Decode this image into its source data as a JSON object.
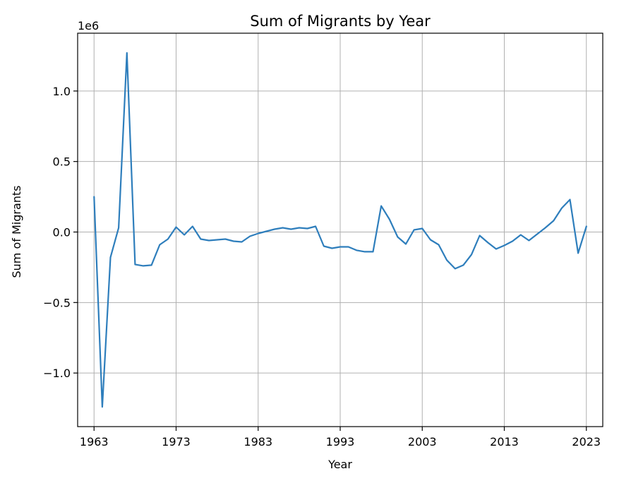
{
  "chart_data": {
    "type": "line",
    "title": "Sum of Migrants by Year",
    "xlabel": "Year",
    "ylabel": "Sum of Migrants",
    "y_scale_label": "1e6",
    "xlim": [
      1961,
      2025
    ],
    "ylim": [
      -1.38,
      1.41
    ],
    "x_ticks": [
      1963,
      1973,
      1983,
      1993,
      2003,
      2013,
      2023
    ],
    "x_tick_labels": [
      "1963",
      "1973",
      "1983",
      "1993",
      "2003",
      "2013",
      "2023"
    ],
    "y_ticks": [
      -1.0,
      -0.5,
      0.0,
      0.5,
      1.0
    ],
    "y_tick_labels": [
      "−1.0",
      "−0.5",
      "0.0",
      "0.5",
      "1.0"
    ],
    "grid": true,
    "color": "#2e7ebc",
    "series": [
      {
        "x": [
          1963,
          1964,
          1965,
          1966,
          1967,
          1968,
          1969,
          1970,
          1971,
          1972,
          1973,
          1974,
          1975,
          1976,
          1977,
          1978,
          1979,
          1980,
          1981,
          1982,
          1983,
          1984,
          1985,
          1986,
          1987,
          1988,
          1989,
          1990,
          1991,
          1992,
          1993,
          1994,
          1995,
          1996,
          1997,
          1998,
          1999,
          2000,
          2001,
          2002,
          2003,
          2004,
          2005,
          2006,
          2007,
          2008,
          2009,
          2010,
          2011,
          2012,
          2013,
          2014,
          2015,
          2016,
          2017,
          2018,
          2019,
          2020,
          2021,
          2022,
          2023
        ],
        "values": [
          0.25,
          -1.24,
          -0.18,
          0.03,
          1.27,
          -0.23,
          -0.24,
          -0.235,
          -0.09,
          -0.05,
          0.035,
          -0.02,
          0.04,
          -0.05,
          -0.06,
          -0.055,
          -0.05,
          -0.065,
          -0.07,
          -0.03,
          -0.01,
          0.005,
          0.02,
          0.03,
          0.02,
          0.03,
          0.025,
          0.04,
          -0.1,
          -0.115,
          -0.105,
          -0.105,
          -0.13,
          -0.14,
          -0.14,
          0.185,
          0.09,
          -0.035,
          -0.085,
          0.015,
          0.025,
          -0.055,
          -0.09,
          -0.2,
          -0.26,
          -0.235,
          -0.16,
          -0.025,
          -0.075,
          -0.12,
          -0.095,
          -0.065,
          -0.02,
          -0.06,
          -0.015,
          0.03,
          0.08,
          0.17,
          0.23,
          -0.15,
          0.04
        ]
      }
    ]
  }
}
